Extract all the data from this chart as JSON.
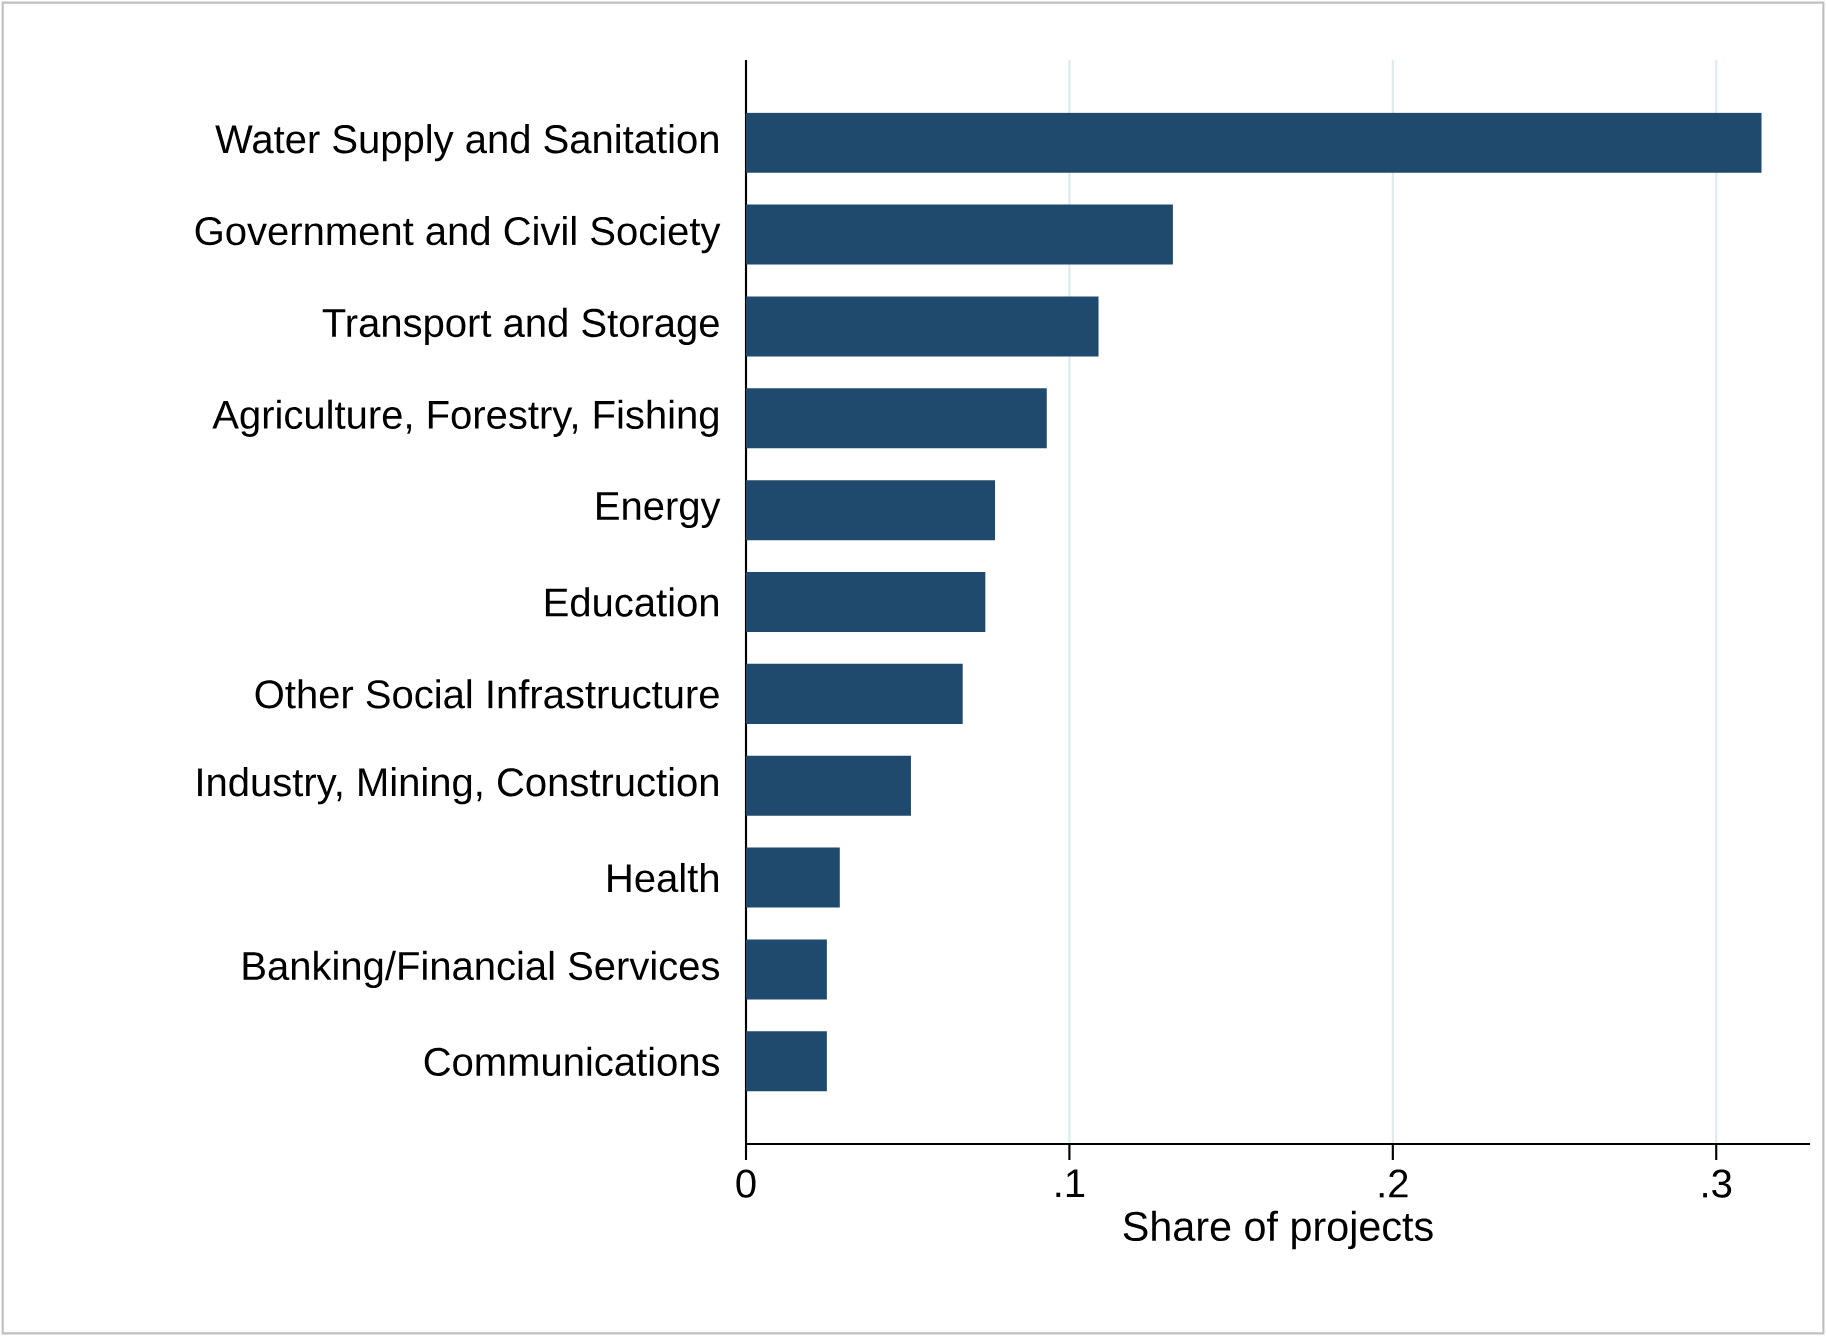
{
  "chart_data": {
    "type": "bar",
    "orientation": "horizontal",
    "xlabel": "Share of projects",
    "categories": [
      "Water Supply and Sanitation",
      "Government and Civil Society",
      "Transport and Storage",
      "Agriculture, Forestry, Fishing",
      "Energy",
      "Education",
      "Other Social Infrastructure",
      "Industry, Mining, Construction",
      "Health",
      "Banking/Financial Services",
      "Communications"
    ],
    "values": [
      0.314,
      0.132,
      0.109,
      0.093,
      0.077,
      0.074,
      0.067,
      0.051,
      0.029,
      0.025,
      0.025
    ],
    "color": "#1f4a6e",
    "xlim": [
      0,
      0.329
    ],
    "xticks": [
      0,
      {
        "value": 0.1,
        "label": ".1"
      },
      {
        "value": 0.2,
        "label": ".2"
      },
      {
        "value": 0.3,
        "label": ".3"
      }
    ],
    "grid": "x"
  }
}
